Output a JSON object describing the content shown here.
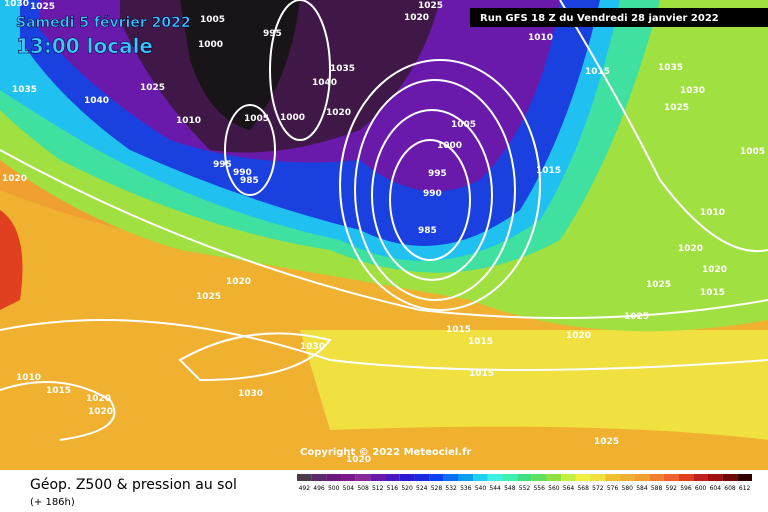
{
  "header": {
    "date": "Samedi 5 février 2022",
    "time": "13:00 locale",
    "run": "Run GFS 18 Z du Vendredi 28 janvier 2022"
  },
  "copyright": "Copyright © 2022 Meteociel.fr",
  "footer": {
    "title": "Géop. Z500 & pression au sol",
    "lead": "(+ 186h)"
  },
  "legend": {
    "values": [
      492,
      496,
      500,
      504,
      508,
      512,
      516,
      520,
      524,
      528,
      532,
      536,
      540,
      544,
      548,
      552,
      556,
      560,
      564,
      568,
      572,
      576,
      580,
      584,
      588,
      592,
      596,
      600,
      604,
      608,
      612
    ],
    "colors": [
      "#4b3b4b",
      "#5a2a6a",
      "#6a1a7a",
      "#7a1a8a",
      "#8a2a9a",
      "#6a1aaa",
      "#4a1ac0",
      "#2a1ad0",
      "#1a2ae0",
      "#0a40f0",
      "#0a70f0",
      "#0aa0f0",
      "#20d0f0",
      "#40f0e0",
      "#40f0b0",
      "#40e080",
      "#60e060",
      "#90e040",
      "#c0f040",
      "#f0f040",
      "#f0e040",
      "#f0c030",
      "#f0b030",
      "#f0a030",
      "#f08030",
      "#f06030",
      "#e04020",
      "#c02020",
      "#a01010",
      "#700808",
      "#300000"
    ]
  },
  "isobar_labels": [
    "1030",
    "1025",
    "1005",
    "1000",
    "995",
    "1025",
    "1020",
    "1010",
    "1015",
    "1035",
    "1030",
    "1025",
    "1025",
    "1040",
    "1010",
    "1005",
    "1000",
    "1020",
    "1040",
    "1035",
    "1005",
    "1000",
    "995",
    "990",
    "985",
    "1015",
    "995",
    "990",
    "985",
    "1020",
    "1005",
    "1010",
    "1020",
    "1020",
    "1025",
    "1015",
    "1025",
    "1020",
    "1015",
    "1015",
    "1015",
    "1025",
    "1020",
    "1030",
    "1010",
    "1015",
    "1020",
    "1020",
    "1030",
    "1025",
    "1020",
    "1035"
  ]
}
